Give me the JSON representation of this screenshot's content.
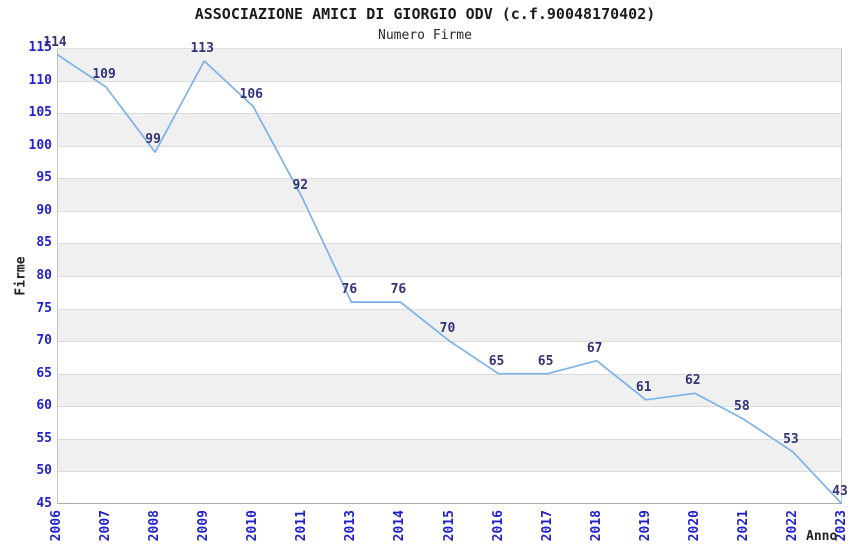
{
  "chart_data": {
    "type": "line",
    "title": "ASSOCIAZIONE AMICI DI GIORGIO ODV (c.f.90048170402)",
    "subtitle": "Numero Firme",
    "xlabel": "Anno",
    "ylabel": "Firme",
    "categories": [
      "2006",
      "2007",
      "2008",
      "2009",
      "2010",
      "2011",
      "2013",
      "2014",
      "2015",
      "2016",
      "2017",
      "2018",
      "2019",
      "2020",
      "2021",
      "2022",
      "2023"
    ],
    "series": [
      {
        "name": "Numero Firme",
        "values": [
          114,
          109,
          99,
          113,
          106,
          92,
          76,
          76,
          70,
          65,
          65,
          67,
          61,
          62,
          58,
          53,
          43
        ]
      }
    ],
    "ylim": [
      45,
      115
    ],
    "ytick_step": 5,
    "grid": "horizontal-bands-on",
    "legend_position": "none",
    "data_labels": "shown-above-points",
    "colors": {
      "line": "#7db1e8",
      "tick_label": "#2222cc",
      "data_label": "#333377",
      "band_alt": "#f0f0f0",
      "band_main": "#ffffff",
      "grid_line": "#dcdcdc",
      "axis_border": "#c6c6c6",
      "title_text": "#1c1c1c"
    }
  }
}
